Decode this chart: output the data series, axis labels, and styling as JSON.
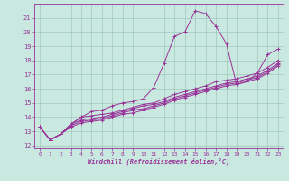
{
  "background_color": "#c8e8e0",
  "grid_color": "#a0c8bc",
  "line_color": "#993399",
  "marker": "+",
  "xlabel": "Windchill (Refroidissement éolien,°C)",
  "xlim": [
    -0.5,
    23.5
  ],
  "ylim": [
    11.8,
    22.0
  ],
  "yticks": [
    12,
    13,
    14,
    15,
    16,
    17,
    18,
    19,
    20,
    21
  ],
  "xticks": [
    0,
    1,
    2,
    3,
    4,
    5,
    6,
    7,
    8,
    9,
    10,
    11,
    12,
    13,
    14,
    15,
    16,
    17,
    18,
    19,
    20,
    21,
    22,
    23
  ],
  "series": [
    [
      13.3,
      12.4,
      12.8,
      13.5,
      14.0,
      14.4,
      14.5,
      14.8,
      15.0,
      15.1,
      15.3,
      16.1,
      17.8,
      19.7,
      20.0,
      21.5,
      21.3,
      20.4,
      19.2,
      16.3,
      16.5,
      17.1,
      18.4,
      18.8
    ],
    [
      13.3,
      12.4,
      12.8,
      13.5,
      14.0,
      14.1,
      14.2,
      14.3,
      14.5,
      14.7,
      14.9,
      15.0,
      15.3,
      15.6,
      15.8,
      16.0,
      16.2,
      16.5,
      16.6,
      16.7,
      16.9,
      17.1,
      17.5,
      18.0
    ],
    [
      13.3,
      12.4,
      12.8,
      13.5,
      13.8,
      13.9,
      14.0,
      14.2,
      14.4,
      14.6,
      14.8,
      14.9,
      15.1,
      15.4,
      15.6,
      15.8,
      16.0,
      16.2,
      16.4,
      16.5,
      16.7,
      16.9,
      17.3,
      17.8
    ],
    [
      13.3,
      12.4,
      12.8,
      13.4,
      13.7,
      13.8,
      13.9,
      14.1,
      14.3,
      14.5,
      14.6,
      14.8,
      15.0,
      15.3,
      15.5,
      15.7,
      15.9,
      16.1,
      16.3,
      16.4,
      16.6,
      16.8,
      17.2,
      17.7
    ],
    [
      13.3,
      12.4,
      12.8,
      13.3,
      13.6,
      13.7,
      13.8,
      14.0,
      14.2,
      14.3,
      14.5,
      14.7,
      14.9,
      15.2,
      15.4,
      15.6,
      15.8,
      16.0,
      16.2,
      16.3,
      16.5,
      16.7,
      17.1,
      17.6
    ]
  ]
}
